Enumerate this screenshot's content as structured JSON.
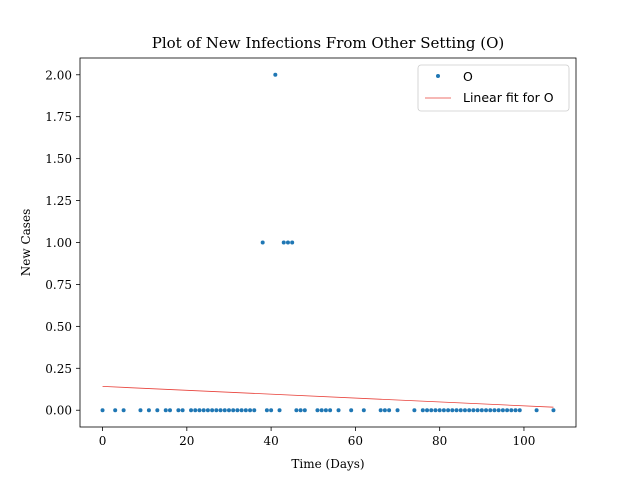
{
  "chart_data": {
    "type": "scatter",
    "title": "Plot of New Infections From Other Setting (O)",
    "xlabel": "Time (Days)",
    "ylabel": "New Cases",
    "xlim": [
      -5.35,
      112.35
    ],
    "ylim": [
      -0.1,
      2.1
    ],
    "xticks": [
      0,
      20,
      40,
      60,
      80,
      100
    ],
    "xtick_labels": [
      "0",
      "20",
      "40",
      "60",
      "80",
      "100"
    ],
    "yticks": [
      0,
      0.25,
      0.5,
      0.75,
      1.0,
      1.25,
      1.5,
      1.75,
      2.0
    ],
    "ytick_labels": [
      "0.00",
      "0.25",
      "0.50",
      "0.75",
      "1.00",
      "1.25",
      "1.50",
      "1.75",
      "2.00"
    ],
    "grid": false,
    "legend_position": "top-right",
    "series": [
      {
        "name": "O",
        "kind": "scatter",
        "color": "#1f77b4",
        "x": [
          0,
          3,
          5,
          9,
          11,
          13,
          15,
          16,
          18,
          19,
          21,
          22,
          23,
          24,
          25,
          26,
          27,
          28,
          29,
          30,
          31,
          32,
          33,
          34,
          35,
          36,
          38,
          39,
          40,
          41,
          42,
          43,
          44,
          45,
          46,
          47,
          48,
          51,
          52,
          53,
          54,
          56,
          59,
          62,
          66,
          67,
          68,
          70,
          74,
          76,
          77,
          78,
          79,
          80,
          81,
          82,
          83,
          84,
          85,
          86,
          87,
          88,
          89,
          90,
          91,
          92,
          93,
          94,
          95,
          96,
          97,
          98,
          99,
          103,
          107
        ],
        "y": [
          0,
          0,
          0,
          0,
          0,
          0,
          0,
          0,
          0,
          0,
          0,
          0,
          0,
          0,
          0,
          0,
          0,
          0,
          0,
          0,
          0,
          0,
          0,
          0,
          0,
          0,
          1,
          0,
          0,
          2,
          0,
          1,
          1,
          1,
          0,
          0,
          0,
          0,
          0,
          0,
          0,
          0,
          0,
          0,
          0,
          0,
          0,
          0,
          0,
          0,
          0,
          0,
          0,
          0,
          0,
          0,
          0,
          0,
          0,
          0,
          0,
          0,
          0,
          0,
          0,
          0,
          0,
          0,
          0,
          0,
          0,
          0,
          0,
          0,
          0
        ]
      },
      {
        "name": "Linear fit for O",
        "kind": "line",
        "color": "#e8413a",
        "x": [
          0,
          107
        ],
        "y": [
          0.142,
          0.018
        ]
      }
    ]
  }
}
